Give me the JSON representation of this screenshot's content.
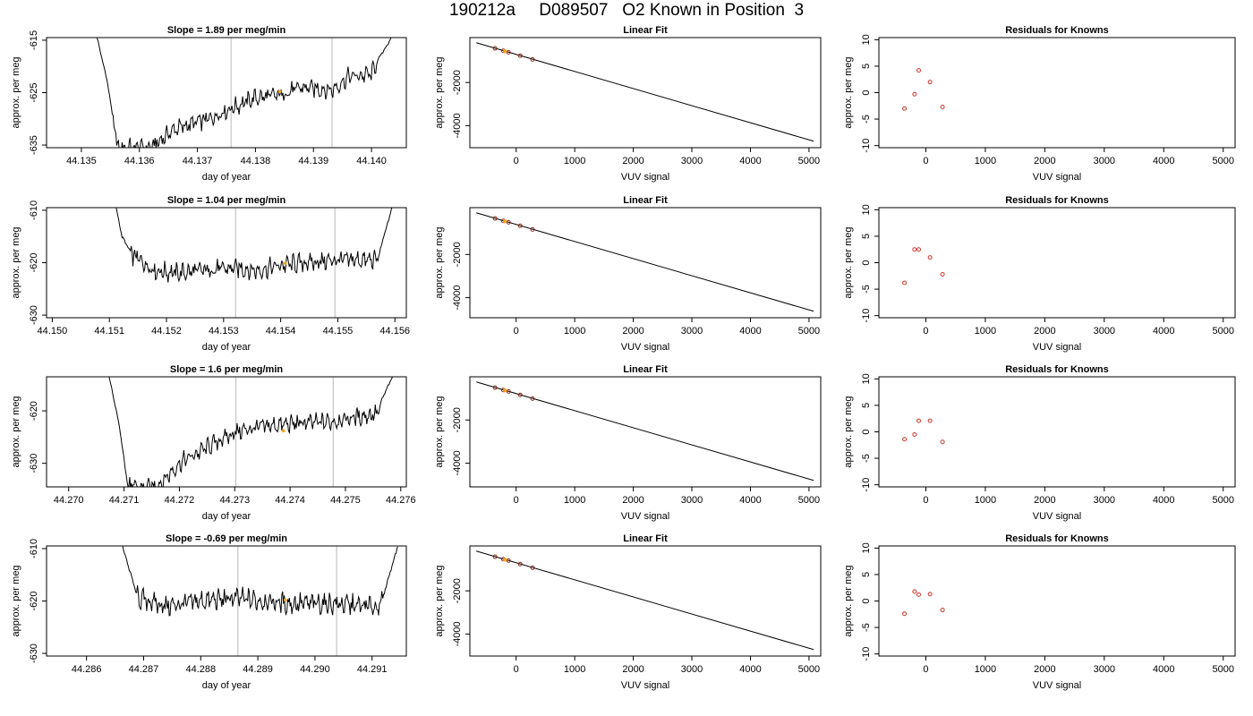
{
  "main_title": "190212a     D089507   O2 Known in Position  3",
  "colors": {
    "line": "#000000",
    "marker_orange": "#f5a623",
    "residual_red": "#d0342c",
    "vline_gray": "#c8c8c8"
  },
  "chart_data": [
    {
      "type": "line",
      "title": "Slope =  1.89  per meg/min",
      "xlabel": "day of year",
      "ylabel": "approx. per meg",
      "xticks": [
        "44.135",
        "44.136",
        "44.137",
        "44.138",
        "44.139",
        "44.140"
      ],
      "yticks": [
        "-635",
        "-625",
        "-615"
      ],
      "xlim": [
        44.1344,
        44.1406
      ],
      "ylim": [
        -635.5,
        -614.5
      ],
      "vlines": [
        44.13758,
        44.13932
      ],
      "series_points": [
        [
          44.13527,
          -614.5
        ],
        [
          44.13545,
          -623.0
        ],
        [
          44.13562,
          -635.5
        ],
        [
          44.1362,
          -635.5
        ],
        [
          44.1366,
          -632.0
        ],
        [
          44.1372,
          -630.0
        ],
        [
          44.13758,
          -628.0
        ],
        [
          44.138,
          -626.0
        ],
        [
          44.1384,
          -625.5
        ],
        [
          44.1388,
          -624.0
        ],
        [
          44.13932,
          -624.5
        ],
        [
          44.1396,
          -622.0
        ],
        [
          44.14,
          -621.5
        ],
        [
          44.14015,
          -618.0
        ],
        [
          44.14035,
          -614.5
        ]
      ],
      "noise_amplitude": 1.5,
      "highlight": [
        44.13842,
        -624.8
      ]
    },
    {
      "type": "line",
      "title": "Slope =  1.04  per meg/min",
      "xlabel": "day of year",
      "ylabel": "approx. per meg",
      "xticks": [
        "44.150",
        "44.151",
        "44.152",
        "44.153",
        "44.154",
        "44.155",
        "44.156"
      ],
      "yticks": [
        "-630",
        "-620",
        "-610"
      ],
      "xlim": [
        44.1499,
        44.1562
      ],
      "ylim": [
        -630.5,
        -609.5
      ],
      "vlines": [
        44.15321,
        44.15495
      ],
      "series_points": [
        [
          44.15112,
          -609.5
        ],
        [
          44.15122,
          -615.0
        ],
        [
          44.1514,
          -618.5
        ],
        [
          44.1518,
          -621.5
        ],
        [
          44.1522,
          -622.0
        ],
        [
          44.1526,
          -621.5
        ],
        [
          44.15321,
          -621.0
        ],
        [
          44.1536,
          -621.5
        ],
        [
          44.154,
          -620.5
        ],
        [
          44.15495,
          -619.5
        ],
        [
          44.1554,
          -619.5
        ],
        [
          44.1557,
          -619.5
        ],
        [
          44.15578,
          -616.0
        ],
        [
          44.15595,
          -609.5
        ]
      ],
      "noise_amplitude": 1.6,
      "highlight": [
        44.15408,
        -620.1
      ]
    },
    {
      "type": "line",
      "title": "Slope =  1.6  per meg/min",
      "xlabel": "day of year",
      "ylabel": "approx. per meg",
      "xticks": [
        "44.270",
        "44.271",
        "44.272",
        "44.273",
        "44.274",
        "44.275",
        "44.276"
      ],
      "yticks": [
        "-630",
        "-620"
      ],
      "xlim": [
        44.2696,
        44.2761
      ],
      "ylim": [
        -634.5,
        -613.5
      ],
      "vlines": [
        44.27302,
        44.27478
      ],
      "series_points": [
        [
          44.27073,
          -613.5
        ],
        [
          44.2709,
          -622.0
        ],
        [
          44.27108,
          -634.5
        ],
        [
          44.2716,
          -634.5
        ],
        [
          44.272,
          -630.0
        ],
        [
          44.2725,
          -627.0
        ],
        [
          44.27302,
          -624.0
        ],
        [
          44.2735,
          -623.0
        ],
        [
          44.274,
          -622.5
        ],
        [
          44.27478,
          -622.0
        ],
        [
          44.2753,
          -621.0
        ],
        [
          44.2756,
          -620.5
        ],
        [
          44.27565,
          -618.0
        ],
        [
          44.27585,
          -613.5
        ]
      ],
      "noise_amplitude": 1.5,
      "highlight": [
        44.27388,
        -623.8
      ]
    },
    {
      "type": "line",
      "title": "Slope =  -0.69  per meg/min",
      "xlabel": "day of year",
      "ylabel": "approx. per meg",
      "xticks": [
        "44.286",
        "44.287",
        "44.288",
        "44.289",
        "44.290",
        "44.291"
      ],
      "yticks": [
        "-630",
        "-620",
        "-610"
      ],
      "xlim": [
        44.2853,
        44.2916
      ],
      "ylim": [
        -630.5,
        -609.5
      ],
      "vlines": [
        44.28865,
        44.29038
      ],
      "series_points": [
        [
          44.28663,
          -609.5
        ],
        [
          44.28675,
          -614.0
        ],
        [
          44.2869,
          -619.5
        ],
        [
          44.2874,
          -621.0
        ],
        [
          44.288,
          -620.0
        ],
        [
          44.28865,
          -619.5
        ],
        [
          44.2891,
          -620.0
        ],
        [
          44.2896,
          -620.5
        ],
        [
          44.29038,
          -620.5
        ],
        [
          44.2908,
          -621.0
        ],
        [
          44.29115,
          -621.0
        ],
        [
          44.29125,
          -617.0
        ],
        [
          44.29145,
          -609.5
        ]
      ],
      "noise_amplitude": 1.8,
      "highlight": [
        44.28948,
        -619.8
      ]
    },
    {
      "type": "scatter",
      "title": "Linear Fit",
      "xlabel": "VUV signal",
      "ylabel": "approx. per meg",
      "xticks": [
        "0",
        "1000",
        "2000",
        "3000",
        "4000",
        "5000"
      ],
      "yticks": [
        "-2000",
        "-4000"
      ],
      "xlim": [
        -790,
        5200
      ],
      "ylim": [
        -5020,
        80
      ],
      "fit_line": [
        [
          -680,
          -160
        ],
        [
          5080,
          -4720
        ]
      ],
      "points": [
        [
          -360,
          -420
        ],
        [
          -220,
          -530
        ],
        [
          -130,
          -600
        ],
        [
          70,
          -760
        ],
        [
          280,
          -930
        ]
      ],
      "highlight": [
        -190,
        -555
      ]
    },
    {
      "type": "scatter",
      "title": "Linear Fit",
      "xlabel": "VUV signal",
      "ylabel": "approx. per meg",
      "xticks": [
        "0",
        "1000",
        "2000",
        "3000",
        "4000",
        "5000"
      ],
      "yticks": [
        "-2000",
        "-4000"
      ],
      "xlim": [
        -790,
        5200
      ],
      "ylim": [
        -4930,
        170
      ],
      "fit_line": [
        [
          -680,
          -70
        ],
        [
          5080,
          -4630
        ]
      ],
      "points": [
        [
          -360,
          -330
        ],
        [
          -220,
          -440
        ],
        [
          -130,
          -510
        ],
        [
          70,
          -670
        ],
        [
          280,
          -840
        ]
      ],
      "highlight": [
        -190,
        -465
      ]
    },
    {
      "type": "scatter",
      "title": "Linear Fit",
      "xlabel": "VUV signal",
      "ylabel": "approx. per meg",
      "xticks": [
        "0",
        "1000",
        "2000",
        "3000",
        "4000",
        "5000"
      ],
      "yticks": [
        "-2000",
        "-4000"
      ],
      "xlim": [
        -790,
        5200
      ],
      "ylim": [
        -5100,
        0
      ],
      "fit_line": [
        [
          -680,
          -240
        ],
        [
          5080,
          -4800
        ]
      ],
      "points": [
        [
          -360,
          -500
        ],
        [
          -220,
          -610
        ],
        [
          -130,
          -680
        ],
        [
          70,
          -840
        ],
        [
          280,
          -1010
        ]
      ],
      "highlight": [
        -190,
        -635
      ]
    },
    {
      "type": "scatter",
      "title": "Linear Fit",
      "xlabel": "VUV signal",
      "ylabel": "approx. per meg",
      "xticks": [
        "0",
        "1000",
        "2000",
        "3000",
        "4000",
        "5000"
      ],
      "yticks": [
        "-2000",
        "-4000"
      ],
      "xlim": [
        -790,
        5200
      ],
      "ylim": [
        -5020,
        80
      ],
      "fit_line": [
        [
          -680,
          -160
        ],
        [
          5080,
          -4720
        ]
      ],
      "points": [
        [
          -360,
          -420
        ],
        [
          -220,
          -530
        ],
        [
          -130,
          -600
        ],
        [
          70,
          -760
        ],
        [
          280,
          -930
        ]
      ],
      "highlight": [
        -190,
        -555
      ]
    },
    {
      "type": "scatter",
      "title": "Residuals for Knowns",
      "xlabel": "VUV signal",
      "ylabel": "approx. per meg",
      "xticks": [
        "0",
        "1000",
        "2000",
        "3000",
        "4000",
        "5000"
      ],
      "yticks": [
        "-10",
        "-5",
        "0",
        "5",
        "10"
      ],
      "xlim": [
        -790,
        5200
      ],
      "ylim": [
        -10.4,
        10.4
      ],
      "points": [
        [
          -360,
          -3.0
        ],
        [
          -190,
          -0.3
        ],
        [
          -120,
          4.2
        ],
        [
          70,
          2.0
        ],
        [
          280,
          -2.7
        ]
      ]
    },
    {
      "type": "scatter",
      "title": "Residuals for Knowns",
      "xlabel": "VUV signal",
      "ylabel": "approx. per meg",
      "xticks": [
        "0",
        "1000",
        "2000",
        "3000",
        "4000",
        "5000"
      ],
      "yticks": [
        "-10",
        "-5",
        "0",
        "5",
        "10"
      ],
      "xlim": [
        -790,
        5200
      ],
      "ylim": [
        -10.4,
        10.4
      ],
      "points": [
        [
          -360,
          -3.8
        ],
        [
          -190,
          2.5
        ],
        [
          -120,
          2.5
        ],
        [
          70,
          1.0
        ],
        [
          280,
          -2.2
        ]
      ]
    },
    {
      "type": "scatter",
      "title": "Residuals for Knowns",
      "xlabel": "VUV signal",
      "ylabel": "approx. per meg",
      "xticks": [
        "0",
        "1000",
        "2000",
        "3000",
        "4000",
        "5000"
      ],
      "yticks": [
        "-10",
        "-5",
        "0",
        "5",
        "10"
      ],
      "xlim": [
        -790,
        5200
      ],
      "ylim": [
        -10.4,
        10.4
      ],
      "points": [
        [
          -360,
          -1.4
        ],
        [
          -190,
          -0.5
        ],
        [
          -120,
          2.1
        ],
        [
          70,
          2.1
        ],
        [
          280,
          -1.9
        ]
      ]
    },
    {
      "type": "scatter",
      "title": "Residuals for Knowns",
      "xlabel": "VUV signal",
      "ylabel": "approx. per meg",
      "xticks": [
        "0",
        "1000",
        "2000",
        "3000",
        "4000",
        "5000"
      ],
      "yticks": [
        "-10",
        "-5",
        "0",
        "5",
        "10"
      ],
      "xlim": [
        -790,
        5200
      ],
      "ylim": [
        -10.4,
        10.4
      ],
      "points": [
        [
          -360,
          -2.4
        ],
        [
          -190,
          1.8
        ],
        [
          -120,
          1.2
        ],
        [
          70,
          1.3
        ],
        [
          280,
          -1.7
        ]
      ]
    }
  ]
}
